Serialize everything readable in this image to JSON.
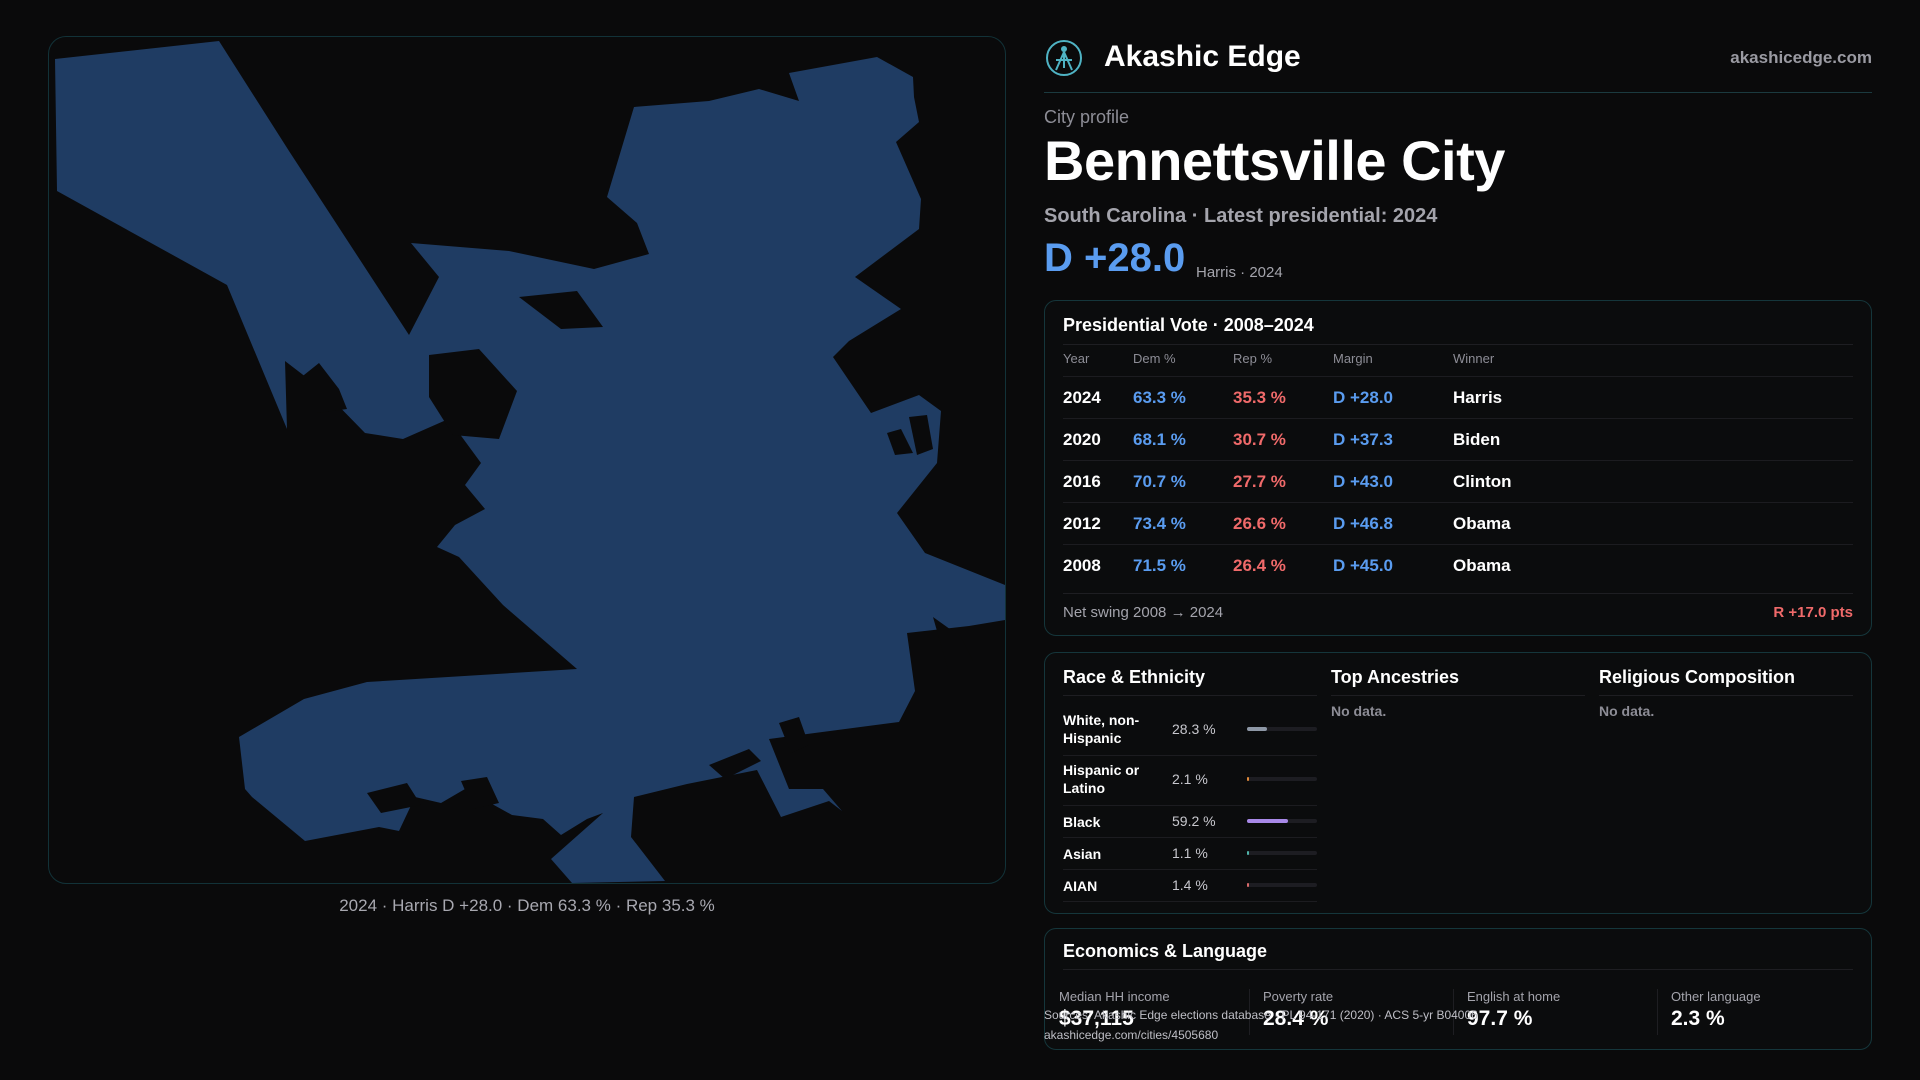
{
  "brand": {
    "name": "Akashic Edge",
    "site": "akashicedge.com"
  },
  "map": {
    "fill_color": "#1f3c63",
    "caption": "2024 · Harris D +28.0 · Dem 63.3 % · Rep 35.3 %"
  },
  "profile": {
    "kicker": "City profile",
    "city": "Bennettsville City",
    "subtitle": "South Carolina · Latest presidential: 2024",
    "margin": "D +28.0",
    "margin_note": "Harris · 2024"
  },
  "vote": {
    "title": "Presidential Vote · 2008–2024",
    "columns": [
      "Year",
      "Dem %",
      "Rep %",
      "Margin",
      "Winner"
    ],
    "rows": [
      {
        "year": "2024",
        "dem": "63.3 %",
        "rep": "35.3 %",
        "margin": "D +28.0",
        "winner": "Harris"
      },
      {
        "year": "2020",
        "dem": "68.1 %",
        "rep": "30.7 %",
        "margin": "D +37.3",
        "winner": "Biden"
      },
      {
        "year": "2016",
        "dem": "70.7 %",
        "rep": "27.7 %",
        "margin": "D +43.0",
        "winner": "Clinton"
      },
      {
        "year": "2012",
        "dem": "73.4 %",
        "rep": "26.6 %",
        "margin": "D +46.8",
        "winner": "Obama"
      },
      {
        "year": "2008",
        "dem": "71.5 %",
        "rep": "26.4 %",
        "margin": "D +45.0",
        "winner": "Obama"
      }
    ],
    "swing_label": "Net swing 2008 → 2024",
    "swing_value": "R +17.0 pts"
  },
  "race": {
    "title": "Race & Ethnicity",
    "rows": [
      {
        "name": "White, non-Hispanic",
        "pct": "28.3 %",
        "value": 28.3,
        "color": "#8e98a6"
      },
      {
        "name": "Hispanic or Latino",
        "pct": "2.1 %",
        "value": 2.1,
        "color": "#e08a3a"
      },
      {
        "name": "Black",
        "pct": "59.2 %",
        "value": 59.2,
        "color": "#a889e8"
      },
      {
        "name": "Asian",
        "pct": "1.1 %",
        "value": 1.1,
        "color": "#4fb3a9"
      },
      {
        "name": "AIAN",
        "pct": "1.4 %",
        "value": 1.4,
        "color": "#d86a6a"
      }
    ]
  },
  "ancestries": {
    "title": "Top Ancestries",
    "empty": "No data."
  },
  "religion": {
    "title": "Religious Composition",
    "empty": "No data."
  },
  "economics": {
    "title": "Economics & Language",
    "stats": [
      {
        "label": "Median HH income",
        "value": "$37,115"
      },
      {
        "label": "Poverty rate",
        "value": "28.4 %"
      },
      {
        "label": "English at home",
        "value": "97.7 %"
      },
      {
        "label": "Other language",
        "value": "2.3 %"
      }
    ]
  },
  "source": {
    "line1": "Sources: Akashic Edge elections database · PL 94-171 (2020) · ACS 5-yr B04006",
    "line2": "akashicedge.com/cities/4505680"
  }
}
